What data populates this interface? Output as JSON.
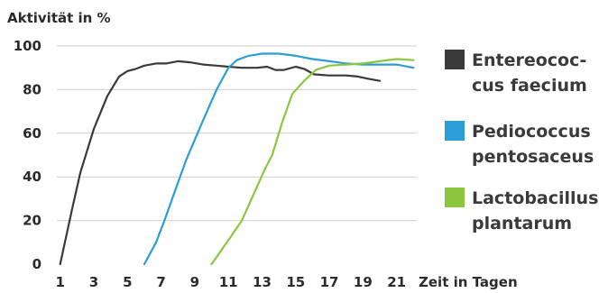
{
  "chart_data": {
    "type": "line",
    "ylabel": "Aktivität in %",
    "xlabel": "Zeit in Tagen",
    "x_ticks": [
      1,
      3,
      5,
      7,
      9,
      11,
      13,
      15,
      17,
      19,
      21
    ],
    "y_ticks": [
      0,
      20,
      40,
      60,
      80,
      100
    ],
    "xlim": [
      0.8,
      22.2
    ],
    "ylim": [
      0,
      100
    ],
    "grid": "horizontal",
    "legend_position": "right",
    "series": [
      {
        "name_lines": [
          "Entereococ-",
          "cus faecium"
        ],
        "color": "#3a3a3a",
        "points": [
          [
            1,
            0
          ],
          [
            1.7,
            25
          ],
          [
            2.2,
            42
          ],
          [
            3,
            62
          ],
          [
            3.8,
            77
          ],
          [
            4.5,
            86
          ],
          [
            5,
            88.5
          ],
          [
            5.5,
            89.5
          ],
          [
            6,
            91
          ],
          [
            6.7,
            92
          ],
          [
            7.3,
            92
          ],
          [
            8,
            93
          ],
          [
            8.7,
            92.5
          ],
          [
            9.5,
            91.5
          ],
          [
            10.3,
            91
          ],
          [
            11,
            90.5
          ],
          [
            11.8,
            90
          ],
          [
            12.7,
            90
          ],
          [
            13.3,
            90.5
          ],
          [
            13.8,
            89
          ],
          [
            14.3,
            89
          ],
          [
            15,
            90.5
          ],
          [
            15.5,
            89.5
          ],
          [
            16.1,
            87
          ],
          [
            17,
            86.5
          ],
          [
            18,
            86.5
          ],
          [
            18.7,
            86
          ],
          [
            19.3,
            85
          ],
          [
            20,
            84
          ]
        ]
      },
      {
        "name_lines": [
          "Pediococcus",
          "pentosaceus"
        ],
        "color": "#2b9ed8",
        "points": [
          [
            6,
            0
          ],
          [
            6.7,
            10
          ],
          [
            7.2,
            20
          ],
          [
            7.8,
            33
          ],
          [
            8.5,
            48
          ],
          [
            9.5,
            66
          ],
          [
            10.3,
            80
          ],
          [
            11,
            90
          ],
          [
            11.5,
            93.5
          ],
          [
            12.2,
            95.5
          ],
          [
            13,
            96.5
          ],
          [
            14,
            96.5
          ],
          [
            15,
            95.5
          ],
          [
            16,
            94
          ],
          [
            17,
            93
          ],
          [
            18,
            92
          ],
          [
            19,
            91.5
          ],
          [
            20,
            91.5
          ],
          [
            21,
            91.5
          ],
          [
            22,
            90
          ]
        ]
      },
      {
        "name_lines": [
          "Lactobacillus",
          "plantarum"
        ],
        "color": "#8cc63f",
        "points": [
          [
            10,
            0
          ],
          [
            11,
            11
          ],
          [
            11.8,
            20
          ],
          [
            12.5,
            32
          ],
          [
            13.2,
            44
          ],
          [
            13.6,
            50
          ],
          [
            14.2,
            65
          ],
          [
            14.8,
            78
          ],
          [
            15.5,
            84
          ],
          [
            16.2,
            89
          ],
          [
            17,
            91
          ],
          [
            18,
            91.5
          ],
          [
            19,
            92
          ],
          [
            20,
            93
          ],
          [
            21,
            94
          ],
          [
            22,
            93.5
          ]
        ]
      }
    ]
  }
}
